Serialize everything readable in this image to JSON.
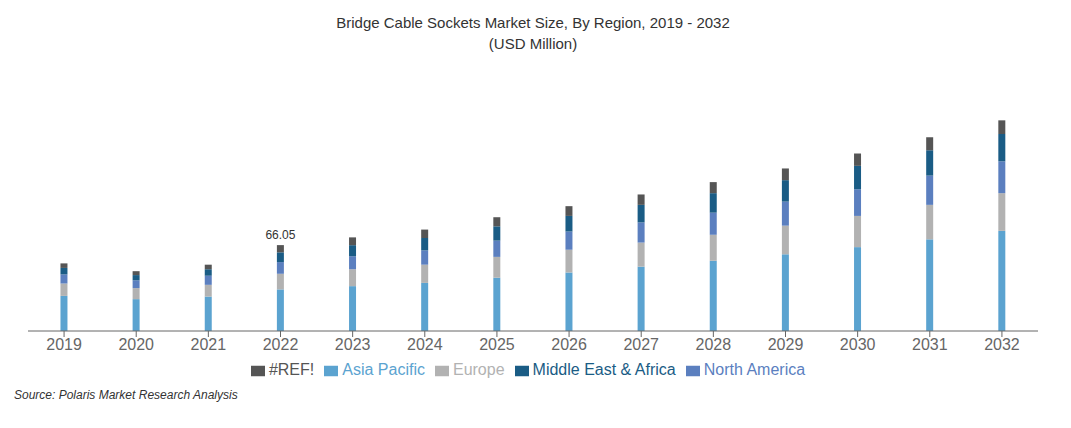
{
  "chart_data": {
    "type": "bar",
    "stacked": true,
    "title": "Bridge Cable Sockets Market Size, By Region, 2019 - 2032",
    "subtitle": "(USD Million)",
    "source": "Source: Polaris Market Research Analysis",
    "categories": [
      "2019",
      "2020",
      "2021",
      "2022",
      "2023",
      "2024",
      "2025",
      "2026",
      "2027",
      "2028",
      "2029",
      "2030",
      "2031",
      "2032"
    ],
    "series": [
      {
        "name": "Asia Pacific",
        "color": "#5BA3D0",
        "values": [
          27.0,
          24.5,
          26.5,
          32.0,
          34.5,
          37.0,
          41.0,
          45.0,
          49.5,
          54.0,
          59.0,
          64.5,
          70.5,
          77.0
        ]
      },
      {
        "name": "Europe",
        "color": "#B2B2B2",
        "values": [
          9.5,
          8.5,
          9.0,
          12.0,
          13.0,
          14.0,
          16.0,
          17.5,
          18.5,
          20.0,
          22.0,
          24.0,
          26.5,
          29.0
        ]
      },
      {
        "name": "North America",
        "color": "#5B7FBF",
        "values": [
          7.0,
          6.0,
          7.0,
          9.0,
          10.0,
          11.0,
          12.5,
          14.0,
          15.5,
          17.0,
          18.5,
          20.5,
          22.5,
          24.5
        ]
      },
      {
        "name": "Middle East & Africa",
        "color": "#1A5C85",
        "values": [
          5.0,
          4.0,
          5.0,
          7.5,
          8.5,
          9.5,
          11.0,
          12.0,
          13.5,
          15.0,
          16.5,
          18.0,
          19.5,
          21.0
        ]
      },
      {
        "name": "#REF!",
        "color": "#555555",
        "values": [
          3.5,
          3.0,
          3.5,
          5.55,
          6.0,
          6.5,
          7.0,
          7.5,
          8.0,
          8.5,
          9.0,
          9.5,
          10.0,
          10.5
        ]
      }
    ],
    "ylim": [
      0,
      197.64
    ],
    "tick_labels": "x",
    "grid": false,
    "legend": "bottom",
    "annotations": [
      {
        "text": "66.05",
        "x": "2022"
      }
    ]
  }
}
